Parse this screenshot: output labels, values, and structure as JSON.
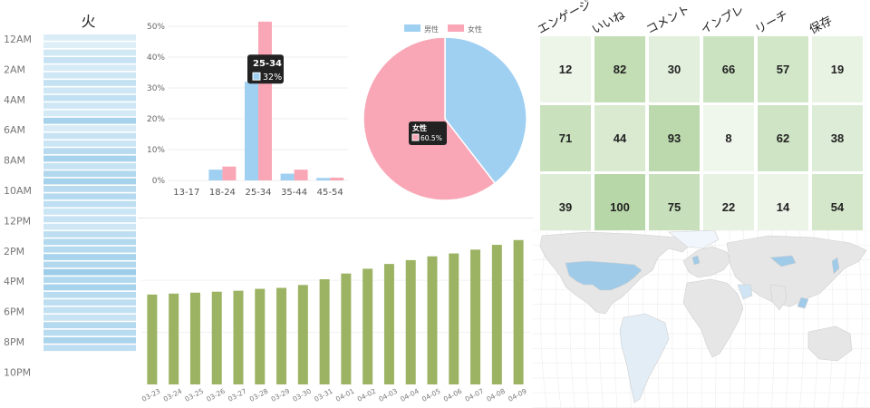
{
  "colors": {
    "hour_bar": "#9fd0ea",
    "age_male": "#9fd0f2",
    "age_female": "#f9a7b6",
    "daily_bar": "#9cb364",
    "heat_low": "#f4f9f2",
    "heat_high": "#b8d7a8",
    "land": "#e6e6e6",
    "land_highlight": "#9fcbe8",
    "tooltip_bg": "#222222"
  },
  "chart_data": [
    {
      "type": "bar",
      "name": "hourly",
      "title": "火",
      "hour_labels": [
        "12AM",
        "2AM",
        "4AM",
        "6AM",
        "8AM",
        "10AM",
        "12PM",
        "2PM",
        "4PM",
        "6PM",
        "8PM",
        "10PM"
      ],
      "intensity": [
        0.18,
        0.12,
        0.28,
        0.4,
        0.22,
        0.3,
        0.42,
        0.3,
        0.45,
        0.3,
        0.25,
        0.75,
        0.22,
        0.4,
        0.35,
        0.55,
        0.72,
        0.4,
        0.62,
        0.75,
        0.55,
        0.58,
        0.48,
        0.35,
        0.4,
        0.3,
        0.5,
        0.6,
        0.58,
        0.72,
        0.62,
        0.85,
        0.62,
        0.72,
        0.55,
        0.5,
        0.45,
        0.4,
        0.6,
        0.55,
        0.7,
        0.5
      ]
    },
    {
      "type": "bar",
      "name": "age",
      "categories": [
        "13-17",
        "18-24",
        "25-34",
        "35-44",
        "45-54"
      ],
      "series": [
        {
          "values": [
            0,
            3.5,
            32,
            2.2,
            0.8
          ]
        },
        {
          "values": [
            0,
            4.5,
            51.5,
            3.5,
            0.9
          ]
        }
      ],
      "y_ticks": [
        "0%",
        "10%",
        "20%",
        "30%",
        "40%",
        "50%"
      ],
      "ylim": [
        0,
        55
      ],
      "tooltip": {
        "title": "25-34",
        "value": "32%"
      }
    },
    {
      "type": "pie",
      "name": "gender",
      "legend": [
        "男性",
        "女性"
      ],
      "values": [
        39.5,
        60.5
      ],
      "tooltip": {
        "title": "女性",
        "value": "60.5%"
      }
    },
    {
      "type": "heatmap",
      "name": "engagement",
      "columns": [
        "エンゲージ",
        "いいね",
        "コメント",
        "インプレ",
        "リーチ",
        "保存"
      ],
      "rows": [
        [
          12,
          82,
          30,
          66,
          57,
          19
        ],
        [
          71,
          44,
          93,
          8,
          62,
          38
        ],
        [
          39,
          100,
          75,
          22,
          14,
          54
        ]
      ]
    },
    {
      "type": "bar",
      "name": "daily",
      "categories": [
        "03-23",
        "03-24",
        "03-25",
        "03-26",
        "03-27",
        "03-28",
        "03-29",
        "03-30",
        "03-31",
        "04-01",
        "04-02",
        "04-03",
        "04-04",
        "04-05",
        "04-06",
        "04-07",
        "04-08",
        "04-09"
      ],
      "values": [
        94,
        95,
        96,
        97,
        98,
        100,
        101,
        104,
        110,
        116,
        121,
        126,
        130,
        134,
        137,
        141,
        146,
        151
      ]
    }
  ]
}
